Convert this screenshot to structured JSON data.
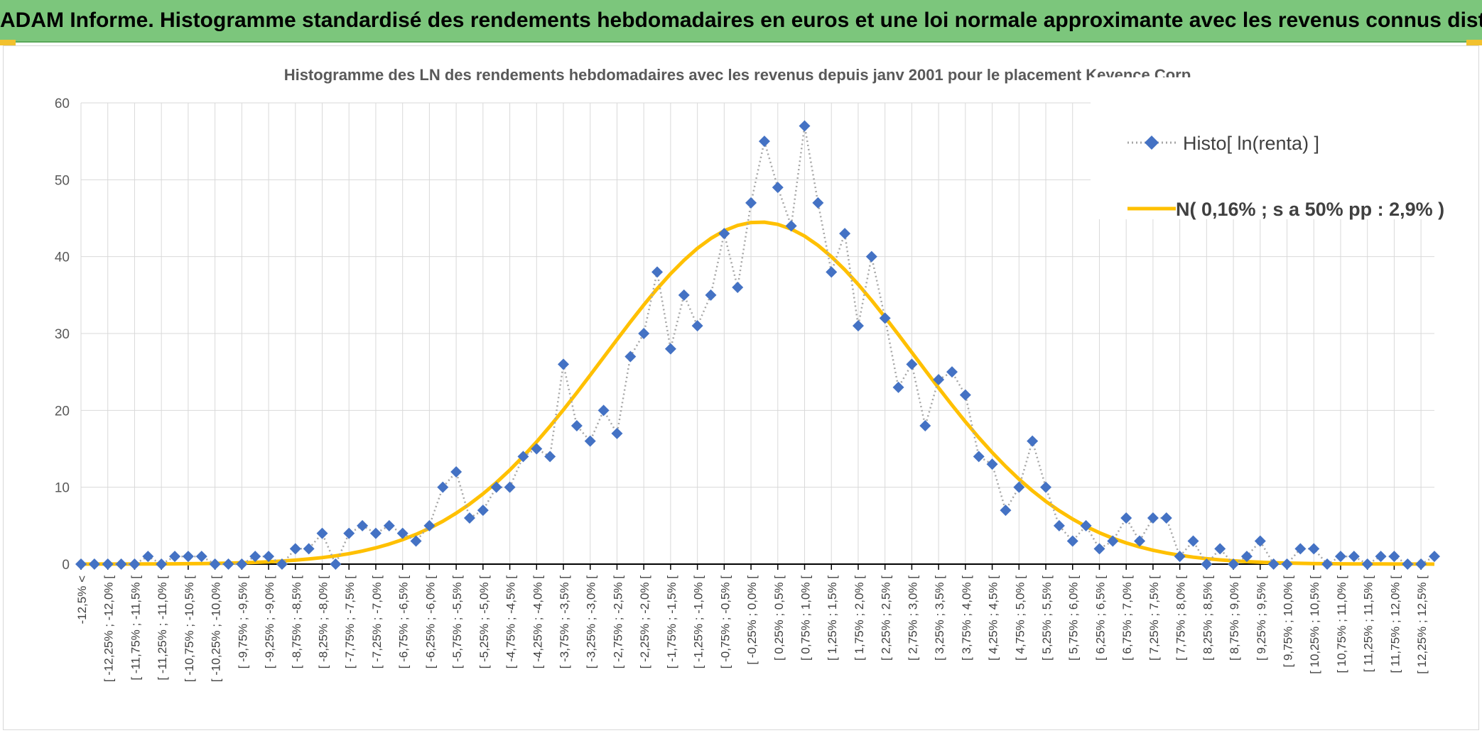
{
  "banner": {
    "title": "ADAM Informe. Histogramme standardisé des rendements hebdomadaires en euros et une loi normale approximante avec les revenus connus distribués"
  },
  "colors": {
    "banner_bg": "#7cc67c",
    "histo_marker": "#4472c4",
    "histo_line": "#a6a6a6",
    "normal_line": "#ffc000",
    "grid": "#d9d9d9"
  },
  "chart_data": {
    "type": "line",
    "title": "Histogramme des LN des rendements hebdomadaires avec les revenus depuis janv 2001 pour le placement Keyence Corp.",
    "xlabel": "",
    "ylabel": "",
    "ylim": [
      0,
      60
    ],
    "yticks": [
      0,
      10,
      20,
      30,
      40,
      50,
      60
    ],
    "grid": true,
    "legend_position": "top-right",
    "category_labels": [
      "-12,5% <",
      "[ -12,25% ; -12,0% [",
      "[ -11,75% ; -11,5% [",
      "[ -11,25% ; -11,0% [",
      "[ -10,75% ; -10,5% [",
      "[ -10,25% ; -10,0% [",
      "[ -9,75% ; -9,5% [",
      "[ -9,25% ; -9,0% [",
      "[ -8,75% ; -8,5% [",
      "[ -8,25% ; -8,0% [",
      "[ -7,75% ; -7,5% [",
      "[ -7,25% ; -7,0% [",
      "[ -6,75% ; -6,5% [",
      "[ -6,25% ; -6,0% [",
      "[ -5,75% ; -5,5% [",
      "[ -5,25% ; -5,0% [",
      "[ -4,75% ; -4,5% [",
      "[ -4,25% ; -4,0% [",
      "[ -3,75% ; -3,5% [",
      "[ -3,25% ; -3,0% [",
      "[ -2,75% ; -2,5% [",
      "[ -2,25% ; -2,0% [",
      "[ -1,75% ; -1,5% [",
      "[ -1,25% ; -1,0% [",
      "[ -0,75% ; -0,5% [",
      "[ -0,25% ; 0,0% [",
      "[ 0,25% ; 0,5% [",
      "[ 0,75% ; 1,0% [",
      "[ 1,25% ; 1,5% [",
      "[ 1,75% ; 2,0% [",
      "[ 2,25% ; 2,5% [",
      "[ 2,75% ; 3,0% [",
      "[ 3,25% ; 3,5% [",
      "[ 3,75% ; 4,0% [",
      "[ 4,25% ; 4,5% [",
      "[ 4,75% ; 5,0% [",
      "[ 5,25% ; 5,5% [",
      "[ 5,75% ; 6,0% [",
      "[ 6,25% ; 6,5% [",
      "[ 6,75% ; 7,0% [",
      "[ 7,25% ; 7,5% [",
      "[ 7,75% ; 8,0% [",
      "[ 8,25% ; 8,5% [",
      "[ 8,75% ; 9,0% [",
      "[ 9,25% ; 9,5% [",
      "[ 9,75% ; 10,0% [",
      "[ 10,25% ; 10,5% [",
      "[ 10,75% ; 11,0% [",
      "[ 11,25% ; 11,5% [",
      "[ 11,75% ; 12,0% [",
      "[ 12,25% ; 12,5% ["
    ],
    "series": [
      {
        "name": "Histo[ ln(renta) ]",
        "style": "dotted-line-diamond",
        "values": [
          0,
          0,
          0,
          0,
          0,
          1,
          0,
          1,
          1,
          1,
          0,
          0,
          0,
          1,
          1,
          0,
          2,
          2,
          4,
          0,
          4,
          5,
          4,
          5,
          4,
          3,
          5,
          10,
          12,
          6,
          7,
          10,
          10,
          14,
          15,
          14,
          26,
          18,
          16,
          20,
          17,
          27,
          30,
          38,
          28,
          35,
          31,
          35,
          43,
          36,
          47,
          55,
          49,
          44,
          57,
          47,
          38,
          43,
          31,
          40,
          32,
          23,
          26,
          18,
          24,
          25,
          22,
          14,
          13,
          7,
          10,
          16,
          10,
          5,
          3,
          5,
          2,
          3,
          6,
          3,
          6,
          6,
          1,
          3,
          0,
          2,
          0,
          1,
          3,
          0,
          0,
          2,
          2,
          0,
          1,
          1,
          0,
          1,
          1,
          0,
          0,
          1
        ]
      },
      {
        "name": "N( 0,16% ; s a 50% pp : 2,9% )",
        "style": "smooth-line",
        "mean": 0.16,
        "sd": 2.9,
        "peak": 44.5,
        "bin_width": 0.25,
        "x_start": -12.5
      }
    ]
  }
}
